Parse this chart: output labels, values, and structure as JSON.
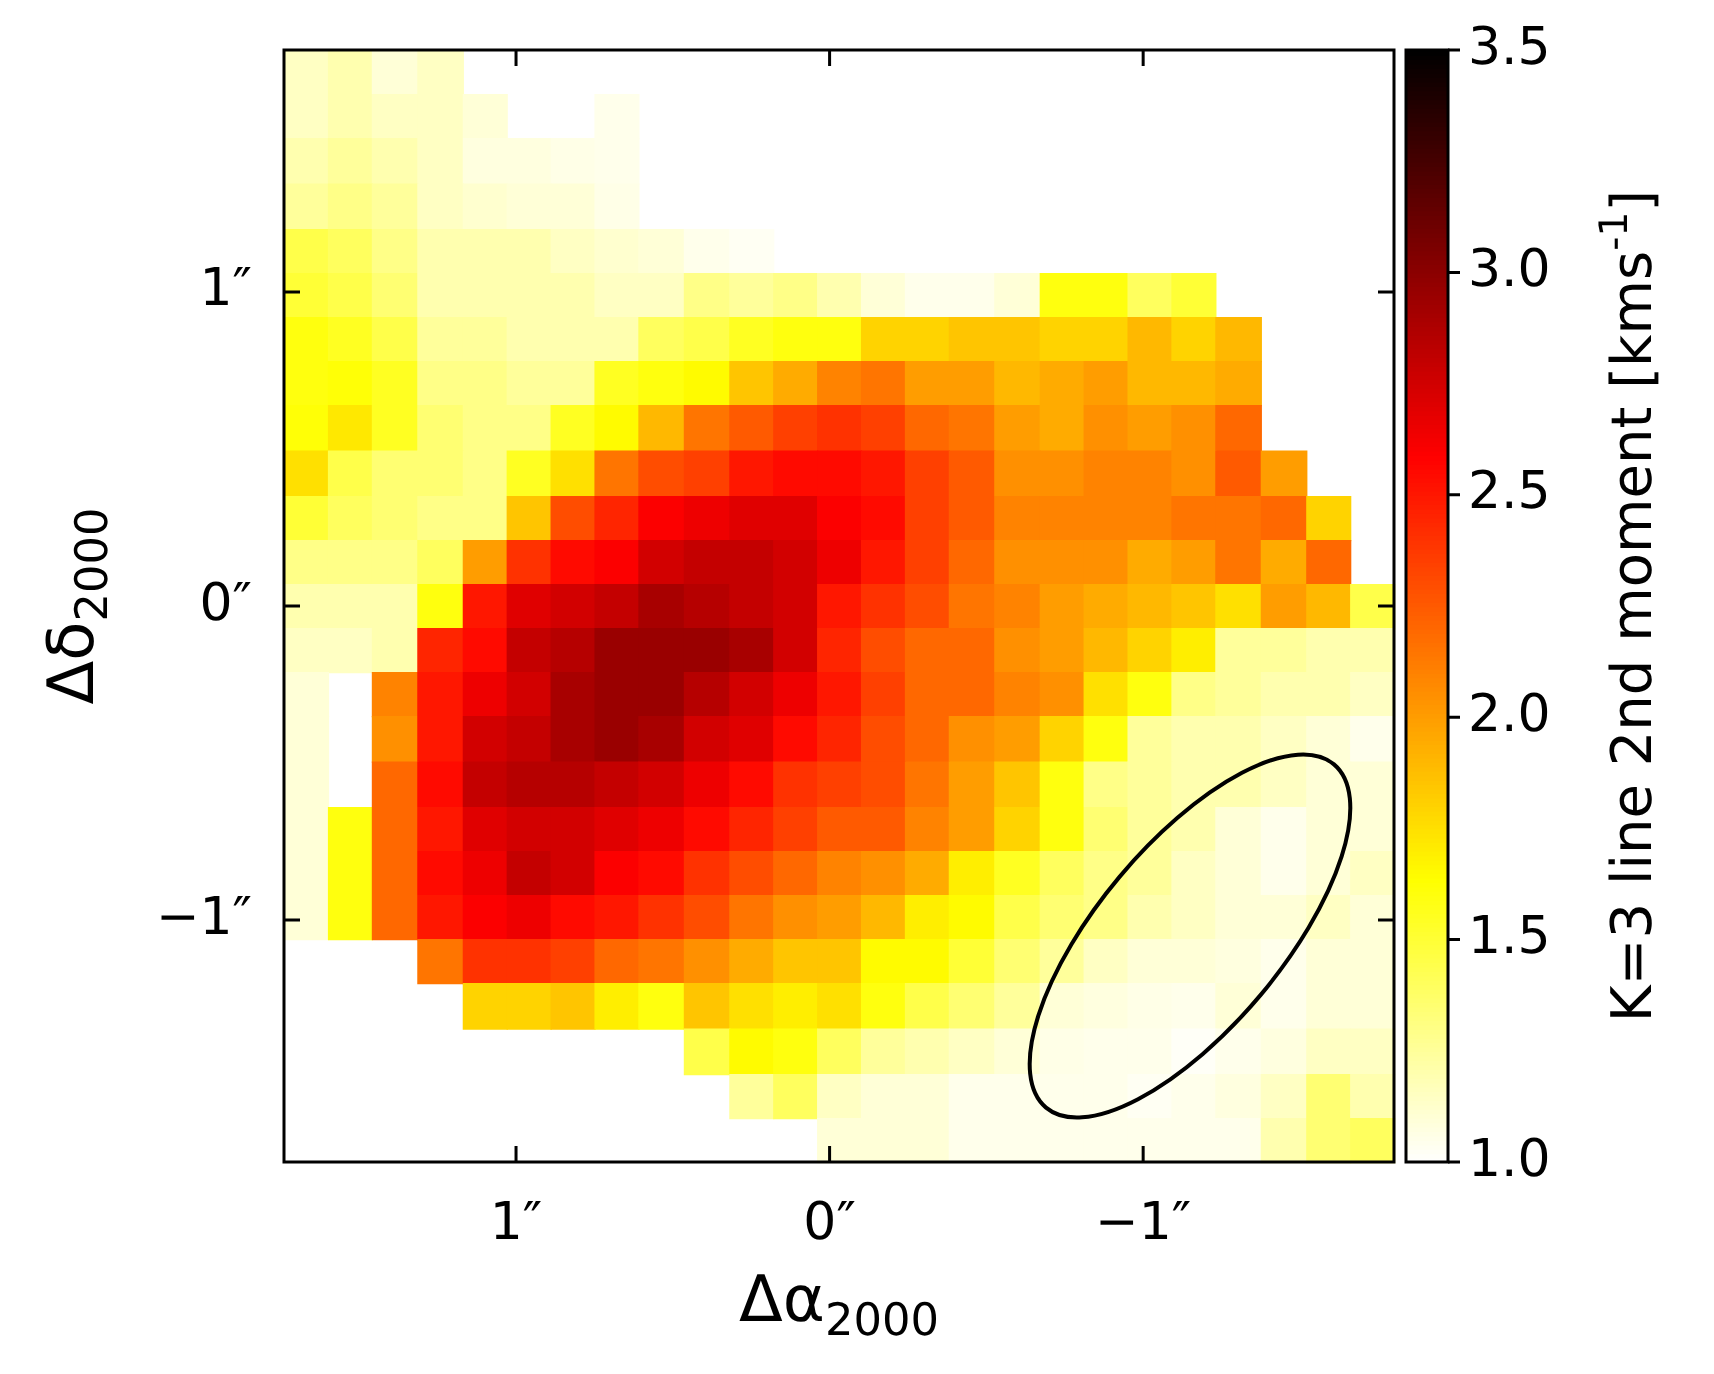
{
  "chart_data": {
    "type": "heatmap",
    "xlabel": "Δα$_{2000}$",
    "ylabel": "Δδ$_{2000}$",
    "clabel": "K=3 line 2nd moment [kms$^{-1}$]",
    "x": [
      1.67,
      1.53,
      1.39,
      1.24,
      1.1,
      0.96,
      0.82,
      0.68,
      0.54,
      0.39,
      0.25,
      0.11,
      -0.03,
      -0.17,
      -0.31,
      -0.45,
      -0.6,
      -0.74,
      -0.88,
      -1.02,
      -1.16,
      -1.3,
      -1.45,
      -1.59,
      -1.73
    ],
    "y": [
      1.7,
      1.56,
      1.42,
      1.27,
      1.13,
      0.99,
      0.85,
      0.71,
      0.57,
      0.42,
      0.28,
      0.14,
      0,
      -0.14,
      -0.28,
      -0.42,
      -0.57,
      -0.71,
      -0.85,
      -0.99,
      -1.13,
      -1.27,
      -1.42,
      -1.56,
      -1.7
    ],
    "xlim": [
      1.74,
      -1.8
    ],
    "ylim": [
      -1.77,
      1.77
    ],
    "xticks": [
      {
        "value": 1,
        "label": "1″"
      },
      {
        "value": 0,
        "label": "0″"
      },
      {
        "value": -1,
        "label": "−1″"
      }
    ],
    "yticks": [
      {
        "value": -1,
        "label": "−1″"
      },
      {
        "value": 0,
        "label": "0″"
      },
      {
        "value": 1,
        "label": "1″"
      }
    ],
    "clim": [
      1,
      3.5
    ],
    "cticks": [
      {
        "value": 1,
        "label": "1.0"
      },
      {
        "value": 1.5,
        "label": "1.5"
      },
      {
        "value": 2,
        "label": "2.0"
      },
      {
        "value": 2.5,
        "label": "2.5"
      },
      {
        "value": 3,
        "label": "3.0"
      },
      {
        "value": 3.5,
        "label": "3.5"
      }
    ],
    "cells": [
      [
        1.15,
        1.2,
        1.1,
        1.15,
        null,
        null,
        null,
        null,
        null,
        null,
        null,
        null,
        null,
        null,
        null,
        null,
        null,
        null,
        null,
        null,
        null,
        null,
        null,
        null,
        null
      ],
      [
        1.15,
        1.2,
        1.15,
        1.15,
        1.1,
        null,
        null,
        1.05,
        null,
        null,
        null,
        null,
        null,
        null,
        null,
        null,
        null,
        null,
        null,
        null,
        null,
        null,
        null,
        null,
        null
      ],
      [
        1.2,
        1.25,
        1.2,
        1.15,
        1.08,
        1.08,
        1.06,
        1.05,
        null,
        null,
        null,
        null,
        null,
        null,
        null,
        null,
        null,
        null,
        null,
        null,
        null,
        null,
        null,
        null,
        null
      ],
      [
        1.25,
        1.3,
        1.25,
        1.15,
        1.12,
        1.1,
        1.1,
        1.06,
        null,
        null,
        null,
        null,
        null,
        null,
        null,
        null,
        null,
        null,
        null,
        null,
        null,
        null,
        null,
        null,
        null
      ],
      [
        1.45,
        1.4,
        1.3,
        1.2,
        1.2,
        1.2,
        1.15,
        1.12,
        1.1,
        1.05,
        1.03,
        null,
        null,
        null,
        null,
        null,
        null,
        null,
        null,
        null,
        null,
        null,
        null,
        null,
        null
      ],
      [
        1.5,
        1.45,
        1.35,
        1.2,
        1.2,
        1.2,
        1.2,
        1.15,
        1.15,
        1.3,
        1.25,
        1.3,
        1.2,
        1.1,
        1.05,
        1.05,
        1.1,
        1.6,
        1.6,
        1.4,
        1.5,
        null,
        null,
        null,
        null
      ],
      [
        1.6,
        1.55,
        1.45,
        1.25,
        1.25,
        1.2,
        1.2,
        1.2,
        1.4,
        1.45,
        1.55,
        1.6,
        1.6,
        1.8,
        1.8,
        1.85,
        1.85,
        1.8,
        1.8,
        1.9,
        1.8,
        1.9,
        null,
        null,
        null
      ],
      [
        1.6,
        1.62,
        1.55,
        1.3,
        1.3,
        1.25,
        1.25,
        1.55,
        1.6,
        1.65,
        1.85,
        1.95,
        2.1,
        2.15,
        2.0,
        2.0,
        1.9,
        1.95,
        2.0,
        1.9,
        1.9,
        1.95,
        null,
        null,
        null
      ],
      [
        1.62,
        1.72,
        1.55,
        1.35,
        1.3,
        1.3,
        1.55,
        1.65,
        1.9,
        2.15,
        2.25,
        2.35,
        2.4,
        2.35,
        2.2,
        2.15,
        2.0,
        1.95,
        2.05,
        2.0,
        2.05,
        2.2,
        null,
        null,
        null
      ],
      [
        1.75,
        1.45,
        1.35,
        1.35,
        1.3,
        1.55,
        1.75,
        2.15,
        2.3,
        2.35,
        2.5,
        2.55,
        2.55,
        2.5,
        2.35,
        2.25,
        2.05,
        2.05,
        2.1,
        2.1,
        2.05,
        2.25,
        2.0,
        null,
        null
      ],
      [
        1.5,
        1.4,
        1.35,
        1.3,
        1.3,
        1.85,
        2.3,
        2.45,
        2.6,
        2.65,
        2.7,
        2.7,
        2.6,
        2.55,
        2.35,
        2.25,
        2.1,
        2.1,
        2.1,
        2.1,
        2.15,
        2.15,
        2.2,
        1.8,
        null
      ],
      [
        1.3,
        1.3,
        1.3,
        1.4,
        2.0,
        2.4,
        2.55,
        2.6,
        2.75,
        2.8,
        2.8,
        2.75,
        2.65,
        2.5,
        2.35,
        2.2,
        2.05,
        2.05,
        2.05,
        1.95,
        2.0,
        2.15,
        1.95,
        2.2,
        null
      ],
      [
        1.2,
        1.2,
        1.2,
        1.6,
        2.5,
        2.7,
        2.75,
        2.8,
        2.9,
        2.85,
        2.8,
        2.75,
        2.5,
        2.4,
        2.3,
        2.15,
        2.1,
        2.0,
        1.95,
        1.9,
        1.85,
        1.75,
        2.0,
        1.9,
        1.45
      ],
      [
        1.15,
        1.15,
        1.2,
        2.45,
        2.55,
        2.8,
        2.85,
        2.95,
        2.95,
        2.95,
        2.9,
        2.75,
        2.45,
        2.3,
        2.2,
        2.2,
        2.05,
        2.0,
        1.9,
        1.8,
        1.7,
        1.25,
        1.25,
        1.2,
        1.2
      ],
      [
        1.1,
        null,
        2.1,
        2.5,
        2.65,
        2.75,
        2.9,
        2.95,
        2.95,
        2.85,
        2.75,
        2.65,
        2.5,
        2.35,
        2.2,
        2.2,
        2.1,
        2.05,
        1.75,
        1.6,
        1.3,
        1.25,
        1.2,
        1.2,
        1.15
      ],
      [
        1.1,
        null,
        2.05,
        2.5,
        2.75,
        2.8,
        2.9,
        2.95,
        2.9,
        2.75,
        2.7,
        2.55,
        2.45,
        2.3,
        2.2,
        2.05,
        2.0,
        1.8,
        1.6,
        1.25,
        1.2,
        1.2,
        1.15,
        1.1,
        1.05
      ],
      [
        1.1,
        null,
        2.2,
        2.55,
        2.8,
        2.85,
        2.85,
        2.8,
        2.75,
        2.65,
        2.55,
        2.4,
        2.35,
        2.3,
        2.15,
        2.0,
        1.85,
        1.6,
        1.3,
        1.25,
        1.2,
        1.2,
        1.15,
        1.1,
        1.1
      ],
      [
        1.1,
        1.6,
        2.2,
        2.5,
        2.7,
        2.75,
        2.75,
        2.7,
        2.65,
        2.55,
        2.45,
        2.35,
        2.25,
        2.25,
        2.1,
        2.0,
        1.8,
        1.6,
        1.35,
        1.25,
        1.2,
        1.1,
        1.05,
        1.1,
        1.1
      ],
      [
        1.1,
        1.6,
        2.2,
        2.55,
        2.65,
        2.8,
        2.75,
        2.6,
        2.55,
        2.4,
        2.3,
        2.2,
        2.1,
        2.05,
        1.95,
        1.7,
        1.55,
        1.4,
        1.3,
        1.25,
        1.15,
        1.1,
        1.05,
        1.1,
        1.15
      ],
      [
        1.1,
        1.6,
        2.2,
        2.5,
        2.6,
        2.65,
        2.55,
        2.5,
        2.4,
        2.3,
        2.15,
        2.05,
        2.0,
        1.9,
        1.7,
        1.65,
        1.45,
        1.35,
        1.3,
        1.2,
        1.15,
        1.1,
        1.1,
        1.15,
        1.1
      ],
      [
        null,
        null,
        null,
        2.15,
        2.4,
        2.4,
        2.35,
        2.2,
        2.15,
        2.05,
        1.95,
        1.85,
        1.85,
        1.65,
        1.65,
        1.5,
        1.35,
        1.25,
        1.15,
        1.1,
        1.1,
        1.08,
        1.05,
        1.1,
        1.1
      ],
      [
        null,
        null,
        null,
        null,
        1.8,
        1.8,
        1.85,
        1.7,
        1.6,
        1.85,
        1.75,
        1.7,
        1.75,
        1.6,
        1.45,
        1.35,
        1.25,
        1.1,
        1.08,
        1.06,
        1.05,
        1.1,
        1.05,
        1.1,
        1.1
      ],
      [
        null,
        null,
        null,
        null,
        null,
        null,
        null,
        null,
        null,
        1.45,
        1.65,
        1.6,
        1.4,
        1.25,
        1.2,
        1.15,
        1.1,
        1.06,
        1.05,
        1.05,
        1.02,
        1.05,
        1.08,
        1.15,
        1.15
      ],
      [
        null,
        null,
        null,
        null,
        null,
        null,
        null,
        null,
        null,
        null,
        1.25,
        1.4,
        1.15,
        1.1,
        1.1,
        1.05,
        1.05,
        1.05,
        1.05,
        1.03,
        1.05,
        1.08,
        1.15,
        1.35,
        1.2
      ],
      [
        null,
        null,
        null,
        null,
        null,
        null,
        null,
        null,
        null,
        null,
        null,
        null,
        1.1,
        1.1,
        1.1,
        1.05,
        1.05,
        1.05,
        1.05,
        1.05,
        1.05,
        1.05,
        1.2,
        1.35,
        1.4
      ]
    ]
  }
}
